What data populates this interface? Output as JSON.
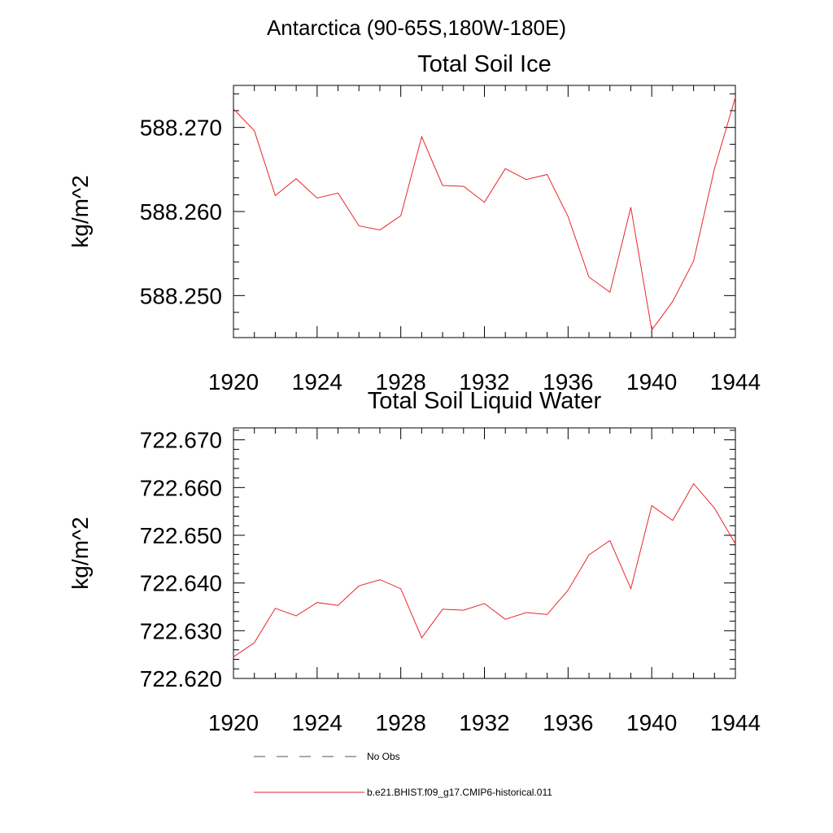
{
  "figure_title": "Antarctica (90-65S,180W-180E)",
  "legend": [
    {
      "label": "No Obs",
      "style": "dashed",
      "color": "#555555"
    },
    {
      "label": "b.e21.BHIST.f09_g17.CMIP6-historical.011",
      "style": "solid",
      "color": "#e8262a"
    }
  ],
  "chart_data": [
    {
      "type": "line",
      "title": "Total Soil Ice",
      "xlabel": "",
      "ylabel": "kg/m^2",
      "xlim": [
        1920,
        1944
      ],
      "ylim": [
        588.245,
        588.275
      ],
      "x_ticks": [
        1920,
        1924,
        1928,
        1932,
        1936,
        1940,
        1944
      ],
      "y_ticks": [
        "588.250",
        "588.260",
        "588.270"
      ],
      "y_tick_values": [
        588.25,
        588.26,
        588.27
      ],
      "series": [
        {
          "color": "#e8262a",
          "x": [
            1920,
            1921,
            1922,
            1923,
            1924,
            1925,
            1926,
            1927,
            1928,
            1929,
            1930,
            1931,
            1932,
            1933,
            1934,
            1935,
            1936,
            1937,
            1938,
            1939,
            1940,
            1941,
            1942,
            1943,
            1944
          ],
          "values": [
            588.2722,
            588.2696,
            588.2619,
            588.2639,
            588.2616,
            588.2622,
            588.2583,
            588.2578,
            588.2595,
            588.2689,
            588.2631,
            588.263,
            588.2611,
            588.2651,
            588.2638,
            588.2644,
            588.2594,
            588.2522,
            588.2504,
            588.2605,
            588.2459,
            588.2493,
            588.2541,
            588.2651,
            588.2736
          ]
        }
      ]
    },
    {
      "type": "line",
      "title": "Total Soil Liquid Water",
      "xlabel": "",
      "ylabel": "kg/m^2",
      "xlim": [
        1920,
        1944
      ],
      "ylim": [
        722.62,
        722.6725
      ],
      "x_ticks": [
        1920,
        1924,
        1928,
        1932,
        1936,
        1940,
        1944
      ],
      "y_ticks": [
        "722.620",
        "722.630",
        "722.640",
        "722.650",
        "722.660",
        "722.670"
      ],
      "y_tick_values": [
        722.62,
        722.63,
        722.64,
        722.65,
        722.66,
        722.67
      ],
      "series": [
        {
          "color": "#e8262a",
          "x": [
            1920,
            1921,
            1922,
            1923,
            1924,
            1925,
            1926,
            1927,
            1928,
            1929,
            1930,
            1931,
            1932,
            1933,
            1934,
            1935,
            1936,
            1937,
            1938,
            1939,
            1940,
            1941,
            1942,
            1943,
            1944
          ],
          "values": [
            722.6245,
            722.6275,
            722.6347,
            722.6331,
            722.6359,
            722.6353,
            722.6394,
            722.6407,
            722.6388,
            722.6285,
            722.6345,
            722.6343,
            722.6357,
            722.6324,
            722.6338,
            722.6334,
            722.6385,
            722.6459,
            722.6489,
            722.6388,
            722.6562,
            722.6531,
            722.6608,
            722.6557,
            722.6482
          ]
        }
      ]
    }
  ]
}
